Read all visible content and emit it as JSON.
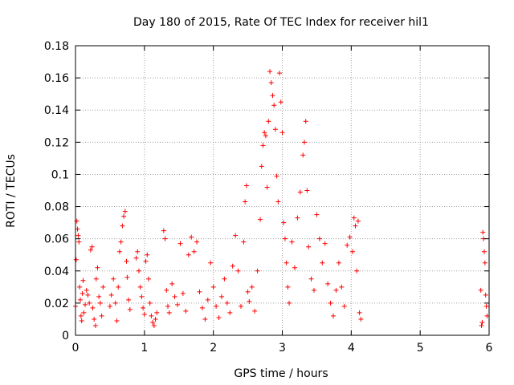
{
  "chart_data": {
    "type": "scatter",
    "title": "Day 180 of 2015, Rate Of TEC Index for receiver hil1",
    "xlabel": "GPS time / hours",
    "ylabel": "ROTI / TECUs",
    "xlim": [
      0,
      6
    ],
    "ylim": [
      0,
      0.18
    ],
    "xticks": [
      0,
      1,
      2,
      3,
      4,
      5,
      6
    ],
    "yticks": [
      0,
      0.02,
      0.04,
      0.06,
      0.08,
      0.1,
      0.12,
      0.14,
      0.16,
      0.18
    ],
    "xtick_labels": [
      "0",
      "1",
      "2",
      "3",
      "4",
      "5",
      "6"
    ],
    "ytick_labels": [
      "0",
      "0.02",
      "0.04",
      "0.06",
      "0.08",
      "0.1",
      "0.12",
      "0.14",
      "0.16",
      "0.18"
    ],
    "grid": true,
    "marker": "+",
    "series": [
      {
        "name": "ROTI",
        "color": "#ff0000",
        "points": [
          [
            0.0,
            0.018
          ],
          [
            0.01,
            0.047
          ],
          [
            0.02,
            0.071
          ],
          [
            0.03,
            0.066
          ],
          [
            0.04,
            0.062
          ],
          [
            0.05,
            0.058
          ],
          [
            0.06,
            0.03
          ],
          [
            0.07,
            0.022
          ],
          [
            0.08,
            0.012
          ],
          [
            0.09,
            0.009
          ],
          [
            0.1,
            0.026
          ],
          [
            0.11,
            0.034
          ],
          [
            0.12,
            0.014
          ],
          [
            0.14,
            0.019
          ],
          [
            0.16,
            0.028
          ],
          [
            0.18,
            0.025
          ],
          [
            0.2,
            0.02
          ],
          [
            0.22,
            0.053
          ],
          [
            0.24,
            0.055
          ],
          [
            0.25,
            0.017
          ],
          [
            0.27,
            0.01
          ],
          [
            0.29,
            0.006
          ],
          [
            0.3,
            0.035
          ],
          [
            0.32,
            0.042
          ],
          [
            0.34,
            0.024
          ],
          [
            0.36,
            0.02
          ],
          [
            0.38,
            0.012
          ],
          [
            0.4,
            0.03
          ],
          [
            0.5,
            0.018
          ],
          [
            0.52,
            0.025
          ],
          [
            0.55,
            0.035
          ],
          [
            0.58,
            0.02
          ],
          [
            0.6,
            0.009
          ],
          [
            0.62,
            0.03
          ],
          [
            0.64,
            0.052
          ],
          [
            0.66,
            0.058
          ],
          [
            0.68,
            0.068
          ],
          [
            0.7,
            0.074
          ],
          [
            0.72,
            0.077
          ],
          [
            0.74,
            0.046
          ],
          [
            0.75,
            0.036
          ],
          [
            0.77,
            0.022
          ],
          [
            0.79,
            0.016
          ],
          [
            0.88,
            0.048
          ],
          [
            0.9,
            0.052
          ],
          [
            0.92,
            0.04
          ],
          [
            0.94,
            0.03
          ],
          [
            0.96,
            0.024
          ],
          [
            0.98,
            0.017
          ],
          [
            1.0,
            0.013
          ],
          [
            1.02,
            0.046
          ],
          [
            1.04,
            0.05
          ],
          [
            1.06,
            0.035
          ],
          [
            1.08,
            0.02
          ],
          [
            1.1,
            0.012
          ],
          [
            1.12,
            0.008
          ],
          [
            1.14,
            0.006
          ],
          [
            1.16,
            0.01
          ],
          [
            1.18,
            0.014
          ],
          [
            1.28,
            0.065
          ],
          [
            1.3,
            0.06
          ],
          [
            1.32,
            0.028
          ],
          [
            1.34,
            0.018
          ],
          [
            1.36,
            0.014
          ],
          [
            1.4,
            0.032
          ],
          [
            1.44,
            0.024
          ],
          [
            1.48,
            0.019
          ],
          [
            1.52,
            0.057
          ],
          [
            1.56,
            0.026
          ],
          [
            1.6,
            0.015
          ],
          [
            1.64,
            0.05
          ],
          [
            1.68,
            0.061
          ],
          [
            1.72,
            0.052
          ],
          [
            1.76,
            0.058
          ],
          [
            1.8,
            0.027
          ],
          [
            1.84,
            0.017
          ],
          [
            1.88,
            0.01
          ],
          [
            1.92,
            0.022
          ],
          [
            1.96,
            0.045
          ],
          [
            2.0,
            0.03
          ],
          [
            2.04,
            0.018
          ],
          [
            2.08,
            0.011
          ],
          [
            2.12,
            0.024
          ],
          [
            2.16,
            0.035
          ],
          [
            2.2,
            0.02
          ],
          [
            2.24,
            0.014
          ],
          [
            2.28,
            0.043
          ],
          [
            2.32,
            0.062
          ],
          [
            2.36,
            0.04
          ],
          [
            2.4,
            0.018
          ],
          [
            2.44,
            0.058
          ],
          [
            2.46,
            0.083
          ],
          [
            2.48,
            0.093
          ],
          [
            2.5,
            0.027
          ],
          [
            2.52,
            0.021
          ],
          [
            2.56,
            0.03
          ],
          [
            2.6,
            0.015
          ],
          [
            2.64,
            0.04
          ],
          [
            2.68,
            0.072
          ],
          [
            2.7,
            0.105
          ],
          [
            2.72,
            0.118
          ],
          [
            2.74,
            0.126
          ],
          [
            2.76,
            0.124
          ],
          [
            2.78,
            0.092
          ],
          [
            2.8,
            0.133
          ],
          [
            2.82,
            0.164
          ],
          [
            2.84,
            0.157
          ],
          [
            2.86,
            0.149
          ],
          [
            2.88,
            0.143
          ],
          [
            2.9,
            0.128
          ],
          [
            2.92,
            0.099
          ],
          [
            2.94,
            0.083
          ],
          [
            2.96,
            0.163
          ],
          [
            2.98,
            0.145
          ],
          [
            3.0,
            0.126
          ],
          [
            3.02,
            0.07
          ],
          [
            3.04,
            0.06
          ],
          [
            3.06,
            0.045
          ],
          [
            3.08,
            0.03
          ],
          [
            3.1,
            0.02
          ],
          [
            3.14,
            0.058
          ],
          [
            3.18,
            0.042
          ],
          [
            3.22,
            0.073
          ],
          [
            3.26,
            0.089
          ],
          [
            3.3,
            0.112
          ],
          [
            3.32,
            0.12
          ],
          [
            3.34,
            0.133
          ],
          [
            3.36,
            0.09
          ],
          [
            3.38,
            0.055
          ],
          [
            3.42,
            0.035
          ],
          [
            3.46,
            0.028
          ],
          [
            3.5,
            0.075
          ],
          [
            3.54,
            0.06
          ],
          [
            3.58,
            0.045
          ],
          [
            3.62,
            0.057
          ],
          [
            3.66,
            0.032
          ],
          [
            3.7,
            0.02
          ],
          [
            3.74,
            0.012
          ],
          [
            3.78,
            0.028
          ],
          [
            3.82,
            0.045
          ],
          [
            3.86,
            0.03
          ],
          [
            3.9,
            0.018
          ],
          [
            3.94,
            0.056
          ],
          [
            3.98,
            0.061
          ],
          [
            4.02,
            0.052
          ],
          [
            4.04,
            0.073
          ],
          [
            4.06,
            0.068
          ],
          [
            4.08,
            0.04
          ],
          [
            4.1,
            0.071
          ],
          [
            4.12,
            0.014
          ],
          [
            4.14,
            0.01
          ],
          [
            5.88,
            0.028
          ],
          [
            5.89,
            0.006
          ],
          [
            5.9,
            0.008
          ],
          [
            5.91,
            0.064
          ],
          [
            5.92,
            0.06
          ],
          [
            5.93,
            0.052
          ],
          [
            5.94,
            0.045
          ],
          [
            5.95,
            0.025
          ],
          [
            5.96,
            0.018
          ],
          [
            5.97,
            0.012
          ]
        ]
      }
    ]
  }
}
